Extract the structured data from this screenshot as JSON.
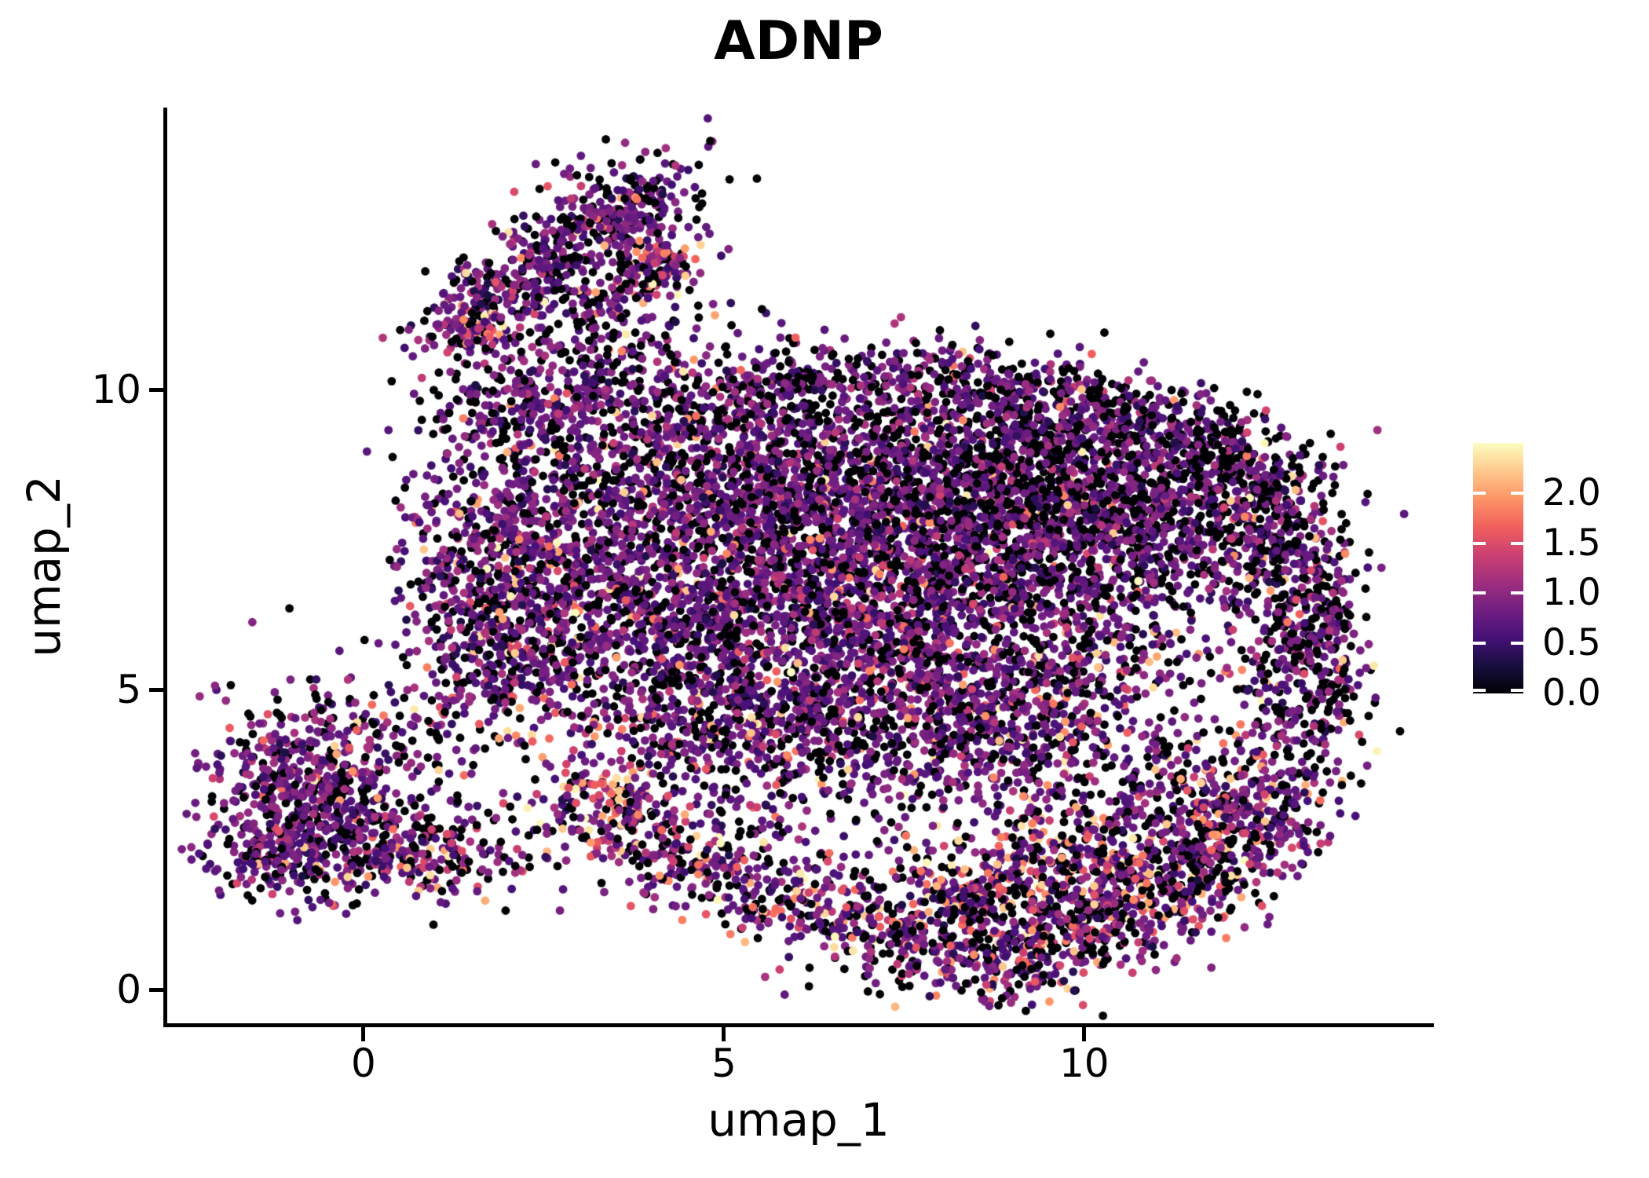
{
  "title": "ADNP",
  "chart_data": {
    "type": "scatter",
    "title": "ADNP",
    "xlabel": "umap_1",
    "ylabel": "umap_2",
    "xlim": [
      -2.723,
      14.807
    ],
    "ylim": [
      -0.589,
      14.699
    ],
    "grid": false,
    "legend_position": "right",
    "x_ticks": [
      {
        "value": 0,
        "label": "0"
      },
      {
        "value": 5,
        "label": "5"
      },
      {
        "value": 10,
        "label": "10"
      }
    ],
    "y_ticks": [
      {
        "value": 0,
        "label": "0"
      },
      {
        "value": 5,
        "label": "5"
      },
      {
        "value": 10,
        "label": "10"
      }
    ],
    "color_scale": {
      "name": "magma",
      "domain": [
        0,
        2.5
      ],
      "ticks": [
        {
          "value": 0.0,
          "label": "0.0"
        },
        {
          "value": 0.5,
          "label": "0.5"
        },
        {
          "value": 1.0,
          "label": "1.0"
        },
        {
          "value": 1.5,
          "label": "1.5"
        },
        {
          "value": 2.0,
          "label": "2.0"
        }
      ],
      "anchors": [
        "#000004",
        "#180f3e",
        "#451077",
        "#721f81",
        "#9f2f7f",
        "#cd4071",
        "#f1605d",
        "#fd9567",
        "#fec98d",
        "#fcfdbf"
      ],
      "zero_color": "#000004"
    },
    "points": {
      "seed": 42,
      "radius_px": 5.4,
      "total_approx": 14300,
      "expression": {
        "zero_is_black": true,
        "mid_range": [
          0.25,
          1.35
        ],
        "high_range": [
          1.35,
          2.5
        ]
      },
      "clusters": [
        {
          "name": "appendage-band",
          "type": "band",
          "pts": [
            [
              1.15,
              10.9
            ],
            [
              1.9,
              11.55
            ],
            [
              2.6,
              12.25
            ],
            [
              3.35,
              12.95
            ],
            [
              4.15,
              13.3
            ]
          ],
          "w": 0.33,
          "n": 520,
          "black": 0.28,
          "hi": 0.07
        },
        {
          "name": "appendage-halo",
          "type": "band",
          "pts": [
            [
              1.3,
              10.8
            ],
            [
              2.3,
              11.7
            ],
            [
              3.3,
              12.5
            ],
            [
              4.3,
              13.1
            ]
          ],
          "w": 0.75,
          "n": 150,
          "black": 0.35,
          "hi": 0.05
        },
        {
          "name": "appendage-branch",
          "type": "band",
          "pts": [
            [
              3.1,
              11.35
            ],
            [
              3.7,
              11.75
            ],
            [
              4.35,
              12.2
            ]
          ],
          "w": 0.22,
          "n": 130,
          "black": 0.25,
          "hi": 0.12
        },
        {
          "name": "appendage-hotspot-low",
          "type": "gauss",
          "cx": 1.62,
          "cy": 10.95,
          "sx": 0.22,
          "sy": 0.16,
          "n": 28,
          "black": 0.05,
          "hi": 0.75
        },
        {
          "name": "appendage-hotspot-high",
          "type": "gauss",
          "cx": 4.2,
          "cy": 12.15,
          "sx": 0.28,
          "sy": 0.16,
          "n": 30,
          "black": 0.05,
          "hi": 0.7
        },
        {
          "name": "neck",
          "type": "gauss",
          "cx": 2.95,
          "cy": 10.15,
          "sx": 0.55,
          "sy": 0.55,
          "n": 170,
          "black": 0.3,
          "hi": 0.06
        },
        {
          "name": "neck-left",
          "type": "gauss",
          "cx": 2.1,
          "cy": 9.6,
          "sx": 0.6,
          "sy": 0.5,
          "n": 140,
          "black": 0.32,
          "hi": 0.06
        },
        {
          "name": "top-strays",
          "type": "gauss",
          "cx": 4.3,
          "cy": 10.9,
          "sx": 0.85,
          "sy": 0.55,
          "n": 60,
          "black": 0.42,
          "hi": 0.05
        },
        {
          "name": "top-band",
          "type": "band",
          "pts": [
            [
              3.7,
              9.65
            ],
            [
              5.2,
              10.0
            ],
            [
              6.8,
              10.2
            ],
            [
              8.3,
              10.15
            ],
            [
              9.5,
              9.95
            ],
            [
              10.4,
              9.75
            ]
          ],
          "w": 0.35,
          "n": 540,
          "black": 0.4,
          "hi": 0.04
        },
        {
          "name": "topright-edge",
          "type": "band",
          "pts": [
            [
              10.5,
              9.75
            ],
            [
              11.6,
              9.3
            ],
            [
              12.5,
              8.6
            ],
            [
              13.05,
              7.9
            ]
          ],
          "w": 0.35,
          "n": 320,
          "black": 0.45,
          "hi": 0.04
        },
        {
          "name": "topright-fill",
          "type": "gauss",
          "cx": 11.3,
          "cy": 8.35,
          "sx": 0.95,
          "sy": 0.6,
          "n": 360,
          "black": 0.4,
          "hi": 0.05
        },
        {
          "name": "core-left-top",
          "type": "gauss",
          "cx": 5.2,
          "cy": 8.6,
          "sx": 1.1,
          "sy": 0.8,
          "n": 750,
          "black": 0.32,
          "hi": 0.06
        },
        {
          "name": "core-mid-top",
          "type": "gauss",
          "cx": 7.5,
          "cy": 8.3,
          "sx": 1.25,
          "sy": 0.95,
          "n": 900,
          "black": 0.33,
          "hi": 0.06
        },
        {
          "name": "core-right-top",
          "type": "gauss",
          "cx": 9.4,
          "cy": 8.7,
          "sx": 1.0,
          "sy": 0.75,
          "n": 600,
          "black": 0.42,
          "hi": 0.05
        },
        {
          "name": "core-mid",
          "type": "gauss",
          "cx": 6.3,
          "cy": 6.7,
          "sx": 1.25,
          "sy": 1.0,
          "n": 850,
          "black": 0.3,
          "hi": 0.08
        },
        {
          "name": "core-mid-right",
          "type": "gauss",
          "cx": 8.3,
          "cy": 6.1,
          "sx": 1.15,
          "sy": 1.15,
          "n": 800,
          "black": 0.3,
          "hi": 0.09
        },
        {
          "name": "core-left",
          "type": "gauss",
          "cx": 4.5,
          "cy": 5.9,
          "sx": 1.0,
          "sy": 0.95,
          "n": 560,
          "black": 0.3,
          "hi": 0.08
        },
        {
          "name": "left-lobe-upper",
          "type": "gauss",
          "cx": 3.2,
          "cy": 7.6,
          "sx": 0.85,
          "sy": 1.15,
          "n": 520,
          "black": 0.3,
          "hi": 0.08
        },
        {
          "name": "left-edge",
          "type": "gauss",
          "cx": 1.7,
          "cy": 7.3,
          "sx": 0.65,
          "sy": 1.15,
          "n": 440,
          "black": 0.28,
          "hi": 0.1
        },
        {
          "name": "left-pink",
          "type": "gauss",
          "cx": 2.2,
          "cy": 5.7,
          "sx": 0.7,
          "sy": 0.8,
          "n": 380,
          "black": 0.25,
          "hi": 0.18
        },
        {
          "name": "mid-bridge",
          "type": "gauss",
          "cx": 5.3,
          "cy": 4.4,
          "sx": 1.0,
          "sy": 0.7,
          "n": 420,
          "black": 0.3,
          "hi": 0.14
        },
        {
          "name": "mid-bridge-right",
          "type": "gauss",
          "cx": 7.4,
          "cy": 4.5,
          "sx": 1.0,
          "sy": 0.8,
          "n": 420,
          "black": 0.33,
          "hi": 0.1
        },
        {
          "name": "ring-inner-left",
          "type": "gauss",
          "cx": 9.4,
          "cy": 4.7,
          "sx": 0.8,
          "sy": 0.8,
          "n": 380,
          "black": 0.33,
          "hi": 0.12
        },
        {
          "name": "ring-top",
          "type": "gauss",
          "cx": 10.4,
          "cy": 7.3,
          "sx": 1.15,
          "sy": 0.7,
          "n": 620,
          "black": 0.38,
          "hi": 0.06
        },
        {
          "name": "ring-right-outer",
          "type": "band",
          "pts": [
            [
              12.9,
              7.7
            ],
            [
              13.3,
              6.8
            ],
            [
              13.45,
              5.8
            ],
            [
              13.3,
              4.8
            ],
            [
              12.8,
              3.9
            ]
          ],
          "w": 0.3,
          "n": 330,
          "black": 0.42,
          "hi": 0.08
        },
        {
          "name": "ring-right-inner",
          "type": "band",
          "pts": [
            [
              12.1,
              7.9
            ],
            [
              12.6,
              7.0
            ],
            [
              12.8,
              6.0
            ],
            [
              12.6,
              5.0
            ]
          ],
          "w": 0.35,
          "n": 220,
          "black": 0.38,
          "hi": 0.1
        },
        {
          "name": "ring-bottom",
          "type": "gauss",
          "cx": 12.0,
          "cy": 3.3,
          "sx": 0.8,
          "sy": 0.6,
          "n": 300,
          "black": 0.3,
          "hi": 0.25
        },
        {
          "name": "hole-sparse",
          "type": "gauss",
          "cx": 11.0,
          "cy": 5.3,
          "sx": 0.75,
          "sy": 0.65,
          "n": 70,
          "black": 0.35,
          "hi": 0.1
        },
        {
          "name": "bottom-arc",
          "type": "band",
          "pts": [
            [
              2.8,
              3.4
            ],
            [
              3.9,
              2.55
            ],
            [
              5.0,
              1.9
            ],
            [
              6.2,
              1.35
            ],
            [
              7.5,
              0.75
            ],
            [
              8.8,
              0.45
            ],
            [
              9.9,
              0.8
            ],
            [
              11.0,
              1.45
            ],
            [
              12.0,
              2.25
            ],
            [
              12.7,
              3.1
            ]
          ],
          "w": 0.45,
          "n": 1250,
          "black": 0.3,
          "hi": 0.28
        },
        {
          "name": "arc-hotspot",
          "type": "gauss",
          "cx": 3.6,
          "cy": 3.25,
          "sx": 0.28,
          "sy": 0.2,
          "n": 35,
          "black": 0.05,
          "hi": 0.8
        },
        {
          "name": "arc-inner-right",
          "type": "gauss",
          "cx": 10.4,
          "cy": 2.3,
          "sx": 1.0,
          "sy": 0.65,
          "n": 430,
          "black": 0.3,
          "hi": 0.3
        },
        {
          "name": "arc-inner-mid",
          "type": "gauss",
          "cx": 8.8,
          "cy": 1.5,
          "sx": 0.9,
          "sy": 0.6,
          "n": 380,
          "black": 0.32,
          "hi": 0.3
        },
        {
          "name": "bottom-sparse-fill",
          "type": "gauss",
          "cx": 5.7,
          "cy": 2.9,
          "sx": 1.5,
          "sy": 0.9,
          "n": 110,
          "black": 0.35,
          "hi": 0.12
        },
        {
          "name": "left-blob",
          "type": "gauss",
          "cx": -0.75,
          "cy": 3.25,
          "sx": 0.72,
          "sy": 0.8,
          "n": 620,
          "black": 0.27,
          "hi": 0.07
        },
        {
          "name": "left-blob-low",
          "type": "gauss",
          "cx": -1.1,
          "cy": 2.2,
          "sx": 0.5,
          "sy": 0.35,
          "n": 130,
          "black": 0.3,
          "hi": 0.1
        },
        {
          "name": "left-blob-hotspot",
          "type": "gauss",
          "cx": 0.35,
          "cy": 2.25,
          "sx": 0.4,
          "sy": 0.3,
          "n": 110,
          "black": 0.15,
          "hi": 0.3
        },
        {
          "name": "bridge",
          "type": "band",
          "pts": [
            [
              0.5,
              2.6
            ],
            [
              1.3,
              2.3
            ],
            [
              2.2,
              2.15
            ]
          ],
          "w": 0.4,
          "n": 140,
          "black": 0.35,
          "hi": 0.2
        },
        {
          "name": "left-upper-scatter",
          "type": "gauss",
          "cx": 1.0,
          "cy": 4.3,
          "sx": 0.9,
          "sy": 0.6,
          "n": 90,
          "black": 0.4,
          "hi": 0.08
        }
      ]
    }
  }
}
